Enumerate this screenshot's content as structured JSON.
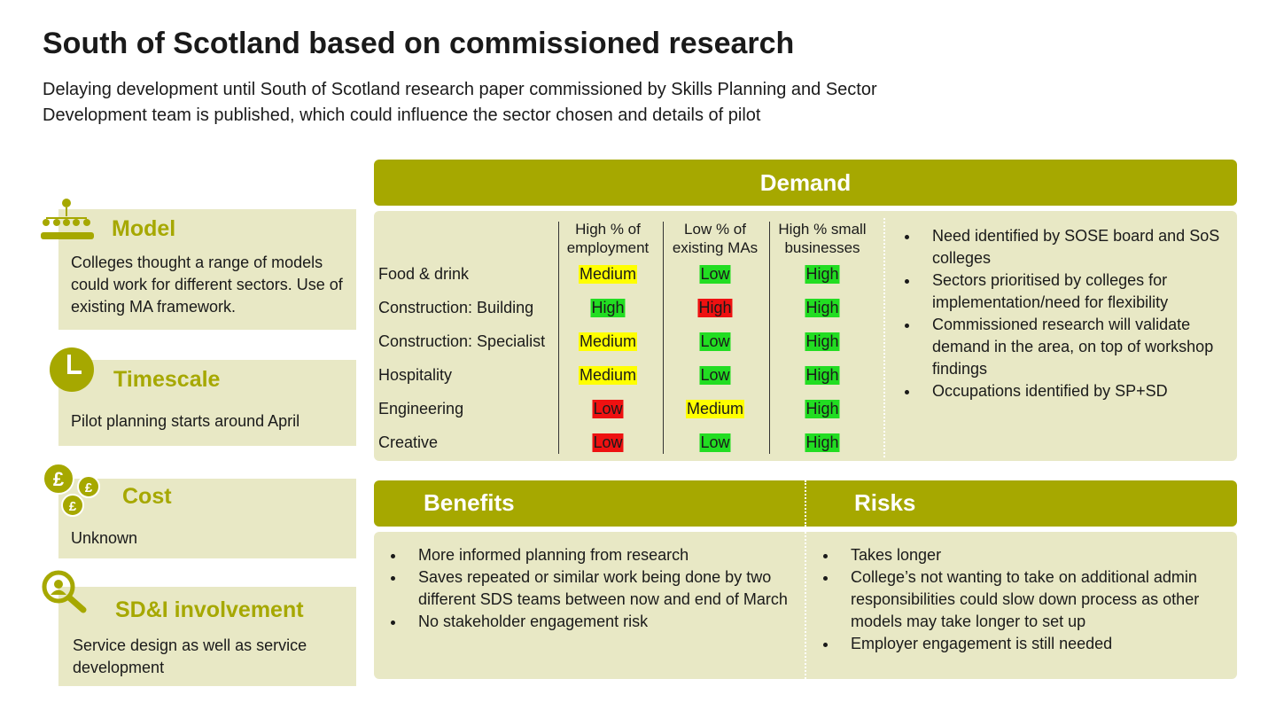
{
  "header": {
    "title": "South of Scotland based on commissioned research",
    "subtitle": "Delaying development until South of Scotland research paper commissioned by Skills Planning and Sector Development team is published, which could influence the sector chosen and details of pilot"
  },
  "side_panels": [
    {
      "heading": "Model",
      "body": "Colleges thought a range of models could work for different sectors. Use of existing MA framework."
    },
    {
      "heading": "Timescale",
      "body": "Pilot planning starts around April"
    },
    {
      "heading": "Cost",
      "body": "Unknown"
    },
    {
      "heading": "SD&I involvement",
      "body": "Service design as well as service development"
    }
  ],
  "demand": {
    "heading": "Demand",
    "columns": [
      "High % of employment",
      "Low % of existing MAs",
      "High % small businesses"
    ],
    "rows": [
      {
        "sector": "Food & drink",
        "ratings": [
          {
            "label": "Medium",
            "color": "#ffff00"
          },
          {
            "label": "Low",
            "color": "#22dd22"
          },
          {
            "label": "High",
            "color": "#22dd22"
          }
        ]
      },
      {
        "sector": "Construction: Building",
        "ratings": [
          {
            "label": "High",
            "color": "#22dd22"
          },
          {
            "label": "High",
            "color": "#ee1111"
          },
          {
            "label": "High",
            "color": "#22dd22"
          }
        ]
      },
      {
        "sector": "Construction: Specialist",
        "ratings": [
          {
            "label": "Medium",
            "color": "#ffff00"
          },
          {
            "label": "Low",
            "color": "#22dd22"
          },
          {
            "label": "High",
            "color": "#22dd22"
          }
        ]
      },
      {
        "sector": "Hospitality",
        "ratings": [
          {
            "label": "Medium",
            "color": "#ffff00"
          },
          {
            "label": "Low",
            "color": "#22dd22"
          },
          {
            "label": "High",
            "color": "#22dd22"
          }
        ]
      },
      {
        "sector": "Engineering",
        "ratings": [
          {
            "label": "Low",
            "color": "#ee1111"
          },
          {
            "label": "Medium",
            "color": "#ffff00"
          },
          {
            "label": "High",
            "color": "#22dd22"
          }
        ]
      },
      {
        "sector": "Creative",
        "ratings": [
          {
            "label": "Low",
            "color": "#ee1111"
          },
          {
            "label": "Low",
            "color": "#22dd22"
          },
          {
            "label": "High",
            "color": "#22dd22"
          }
        ]
      }
    ],
    "notes": [
      "Need identified by SOSE board and SoS colleges",
      "Sectors prioritised by colleges for implementation/need for flexibility",
      "Commissioned research will validate demand in the area, on top of workshop findings",
      "Occupations identified by SP+SD"
    ]
  },
  "benefits": {
    "heading": "Benefits",
    "items": [
      "More informed planning from research",
      "Saves repeated or similar work being done by two different SDS teams between now and end of March",
      "No stakeholder engagement risk"
    ]
  },
  "risks": {
    "heading": "Risks",
    "items": [
      "Takes longer",
      "College’s not wanting to take on additional admin responsibilities could slow down process as other models may take longer to set up",
      "Employer engagement is still needed"
    ]
  }
}
